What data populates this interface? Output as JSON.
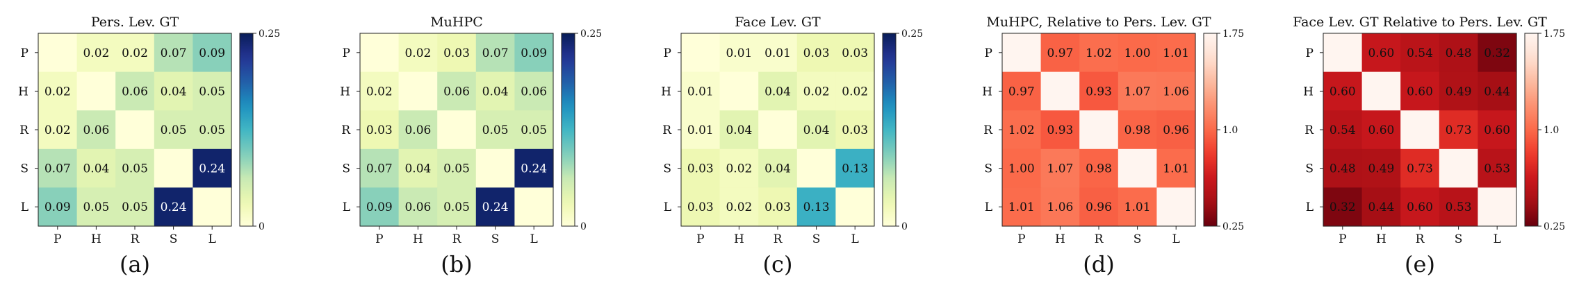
{
  "figure": {
    "row_labels": [
      "P",
      "H",
      "R",
      "S",
      "L"
    ],
    "col_labels": [
      "P",
      "H",
      "R",
      "S",
      "L"
    ]
  },
  "chart_data": [
    {
      "type": "heatmap",
      "title": "Pers. Lev. GT",
      "caption": "(a)",
      "colormap": "YlGnBu",
      "vmin": 0,
      "vmax": 0.25,
      "colorbar_ticks": [
        "0.25",
        "0"
      ],
      "rows": [
        "P",
        "H",
        "R",
        "S",
        "L"
      ],
      "cols": [
        "P",
        "H",
        "R",
        "S",
        "L"
      ],
      "values": [
        [
          null,
          0.02,
          0.02,
          0.07,
          0.09
        ],
        [
          0.02,
          null,
          0.06,
          0.04,
          0.05
        ],
        [
          0.02,
          0.06,
          null,
          0.05,
          0.05
        ],
        [
          0.07,
          0.04,
          0.05,
          null,
          0.24
        ],
        [
          0.09,
          0.05,
          0.05,
          0.24,
          null
        ]
      ]
    },
    {
      "type": "heatmap",
      "title": "MuHPC",
      "caption": "(b)",
      "colormap": "YlGnBu",
      "vmin": 0,
      "vmax": 0.25,
      "colorbar_ticks": [
        "0.25",
        "0"
      ],
      "rows": [
        "P",
        "H",
        "R",
        "S",
        "L"
      ],
      "cols": [
        "P",
        "H",
        "R",
        "S",
        "L"
      ],
      "values": [
        [
          null,
          0.02,
          0.03,
          0.07,
          0.09
        ],
        [
          0.02,
          null,
          0.06,
          0.04,
          0.06
        ],
        [
          0.03,
          0.06,
          null,
          0.05,
          0.05
        ],
        [
          0.07,
          0.04,
          0.05,
          null,
          0.24
        ],
        [
          0.09,
          0.06,
          0.05,
          0.24,
          null
        ]
      ]
    },
    {
      "type": "heatmap",
      "title": "Face Lev. GT",
      "caption": "(c)",
      "colormap": "YlGnBu",
      "vmin": 0,
      "vmax": 0.25,
      "colorbar_ticks": [
        "0.25",
        "0"
      ],
      "rows": [
        "P",
        "H",
        "R",
        "S",
        "L"
      ],
      "cols": [
        "P",
        "H",
        "R",
        "S",
        "L"
      ],
      "values": [
        [
          null,
          0.01,
          0.01,
          0.03,
          0.03
        ],
        [
          0.01,
          null,
          0.04,
          0.02,
          0.02
        ],
        [
          0.01,
          0.04,
          null,
          0.04,
          0.03
        ],
        [
          0.03,
          0.02,
          0.04,
          null,
          0.13
        ],
        [
          0.03,
          0.02,
          0.03,
          0.13,
          null
        ]
      ]
    },
    {
      "type": "heatmap",
      "title": "MuHPC, Relative to Pers. Lev. GT",
      "caption": "(d)",
      "colormap": "Reds_r",
      "vmin": 0.25,
      "vmax": 1.75,
      "colorbar_ticks": [
        "1.75",
        "1.0",
        "0.25"
      ],
      "rows": [
        "P",
        "H",
        "R",
        "S",
        "L"
      ],
      "cols": [
        "P",
        "H",
        "R",
        "S",
        "L"
      ],
      "values": [
        [
          null,
          0.97,
          1.02,
          1.0,
          1.01
        ],
        [
          0.97,
          null,
          0.93,
          1.07,
          1.06
        ],
        [
          1.02,
          0.93,
          null,
          0.98,
          0.96
        ],
        [
          1.0,
          1.07,
          0.98,
          null,
          1.01
        ],
        [
          1.01,
          1.06,
          0.96,
          1.01,
          null
        ]
      ]
    },
    {
      "type": "heatmap",
      "title": "Face Lev. GT Relative to Pers. Lev. GT",
      "caption": "(e)",
      "colormap": "Reds_r",
      "vmin": 0.25,
      "vmax": 1.75,
      "colorbar_ticks": [
        "1.75",
        "1.0",
        "0.25"
      ],
      "rows": [
        "P",
        "H",
        "R",
        "S",
        "L"
      ],
      "cols": [
        "P",
        "H",
        "R",
        "S",
        "L"
      ],
      "values": [
        [
          null,
          0.6,
          0.54,
          0.48,
          0.32
        ],
        [
          0.6,
          null,
          0.6,
          0.49,
          0.44
        ],
        [
          0.54,
          0.6,
          null,
          0.73,
          0.6
        ],
        [
          0.48,
          0.49,
          0.73,
          null,
          0.53
        ],
        [
          0.32,
          0.44,
          0.6,
          0.53,
          null
        ]
      ]
    }
  ]
}
